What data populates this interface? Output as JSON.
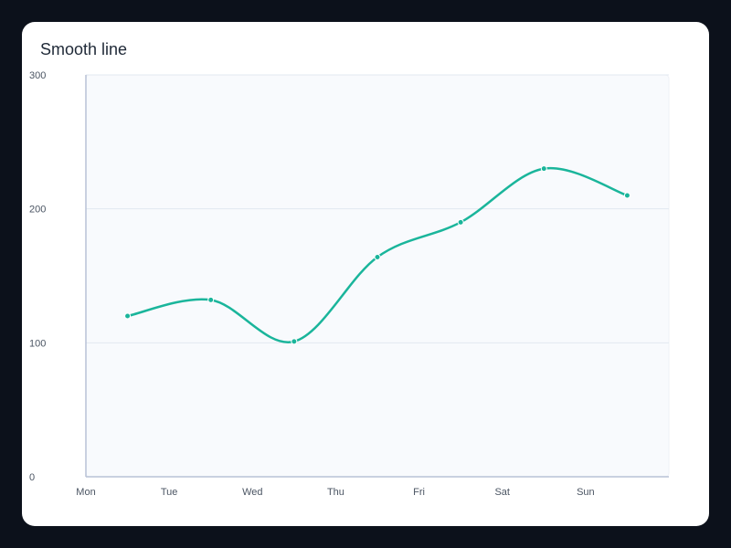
{
  "colors": {
    "background": "#0c111b",
    "card": "#ffffff",
    "plot_background": "#f8fafd",
    "gridline": "#e2e8f0",
    "axis": "#b8c2d6",
    "line": "#1ab59b"
  },
  "chart_data": {
    "type": "line",
    "title": "Smooth line",
    "xlabel": "",
    "ylabel": "",
    "categories": [
      "Mon",
      "Tue",
      "Wed",
      "Thu",
      "Fri",
      "Sat",
      "Sun"
    ],
    "series": [
      {
        "values": [
          120,
          132,
          101,
          164,
          190,
          230,
          210
        ]
      }
    ],
    "ylim": [
      0,
      300
    ],
    "yticks": [
      0,
      100,
      200,
      300
    ],
    "smooth": true,
    "markers": true,
    "grid": true,
    "legend": "none"
  }
}
